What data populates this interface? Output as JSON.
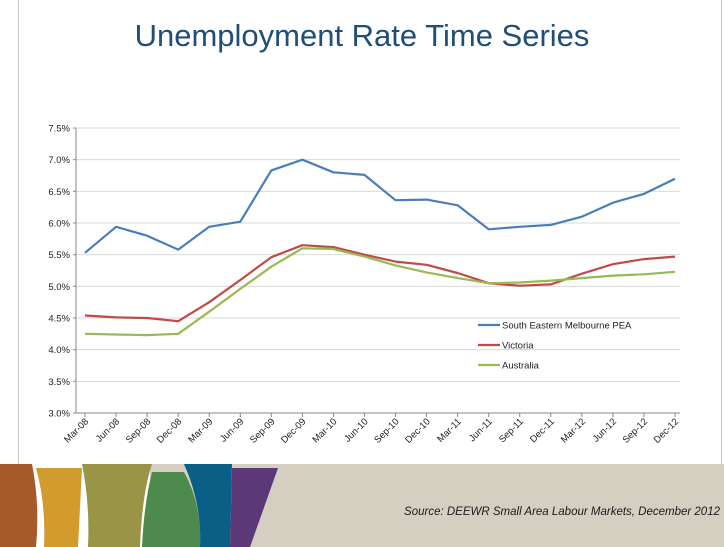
{
  "slide": {
    "title": "Unemployment Rate Time Series",
    "source": "Source:  DEEWR Small Area Labour Markets, December 2012"
  },
  "colors": {
    "title": "#1f4e79",
    "grid": "#d9d9d9",
    "axis": "#888888",
    "footer_band": "#d4cfc1"
  },
  "chart_data": {
    "type": "line",
    "title": "",
    "xlabel": "",
    "ylabel": "",
    "ylim": [
      3.0,
      7.5
    ],
    "yticks": [
      3.0,
      3.5,
      4.0,
      4.5,
      5.0,
      5.5,
      6.0,
      6.5,
      7.0,
      7.5
    ],
    "ytick_labels": [
      "3.0%",
      "3.5%",
      "4.0%",
      "4.5%",
      "5.0%",
      "5.5%",
      "6.0%",
      "6.5%",
      "7.0%",
      "7.5%"
    ],
    "grid": true,
    "legend_position": "right-lower",
    "categories": [
      "Mar-08",
      "Jun-08",
      "Sep-08",
      "Dec-08",
      "Mar-09",
      "Jun-09",
      "Sep-09",
      "Dec-09",
      "Mar-10",
      "Jun-10",
      "Sep-10",
      "Dec-10",
      "Mar-11",
      "Jun-11",
      "Sep-11",
      "Dec-11",
      "Mar-12",
      "Jun-12",
      "Sep-12",
      "Dec-12"
    ],
    "series": [
      {
        "name": "South Eastern Melbourne PEA",
        "color": "#4a7ebb",
        "values": [
          5.53,
          5.94,
          5.8,
          5.58,
          5.94,
          6.02,
          6.83,
          7.0,
          6.8,
          6.76,
          6.36,
          6.37,
          6.28,
          5.9,
          5.94,
          5.97,
          6.1,
          6.32,
          6.46,
          6.7
        ]
      },
      {
        "name": "Victoria",
        "color": "#be4b48",
        "values": [
          4.54,
          4.51,
          4.5,
          4.45,
          4.75,
          5.1,
          5.46,
          5.65,
          5.62,
          5.5,
          5.39,
          5.34,
          5.21,
          5.05,
          5.01,
          5.03,
          5.2,
          5.35,
          5.43,
          5.47
        ]
      },
      {
        "name": "Australia",
        "color": "#98b954",
        "values": [
          4.25,
          4.24,
          4.23,
          4.25,
          4.6,
          4.96,
          5.31,
          5.6,
          5.59,
          5.47,
          5.33,
          5.22,
          5.13,
          5.05,
          5.06,
          5.09,
          5.13,
          5.17,
          5.19,
          5.23
        ]
      }
    ]
  },
  "footer_shapes": [
    {
      "name": "footer-block-rust",
      "color": "#a65a2a"
    },
    {
      "name": "footer-block-gold",
      "color": "#d19b2e"
    },
    {
      "name": "footer-block-olive",
      "color": "#9a9447"
    },
    {
      "name": "footer-block-green",
      "color": "#4e8a4e"
    },
    {
      "name": "footer-block-teal",
      "color": "#0a5f86"
    },
    {
      "name": "footer-block-purple",
      "color": "#5d3878"
    }
  ]
}
